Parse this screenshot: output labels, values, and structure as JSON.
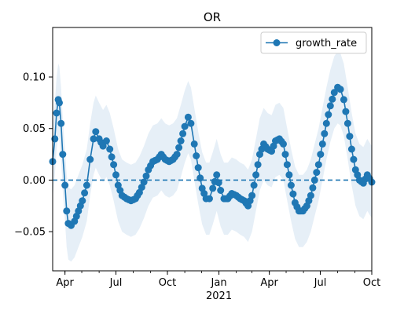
{
  "chart_data": {
    "type": "line",
    "title": "OR",
    "xlabel": "",
    "ylabel": "",
    "x_range": [
      "2020-03-10",
      "2021-10-01"
    ],
    "ylim": [
      -0.088,
      0.148
    ],
    "x_ticks": [
      {
        "date": "2020-04-01",
        "label": "Apr"
      },
      {
        "date": "2020-07-01",
        "label": "Jul"
      },
      {
        "date": "2020-10-01",
        "label": "Oct"
      },
      {
        "date": "2021-01-01",
        "label": "Jan"
      },
      {
        "date": "2021-04-01",
        "label": "Apr"
      },
      {
        "date": "2021-07-01",
        "label": "Jul"
      },
      {
        "date": "2021-10-01",
        "label": "Oct"
      }
    ],
    "x_secondary_label": {
      "date": "2021-01-01",
      "label": "2021"
    },
    "y_ticks": [
      {
        "value": 0.1,
        "label": "0.10"
      },
      {
        "value": 0.05,
        "label": "0.05"
      },
      {
        "value": 0.0,
        "label": "0.00"
      },
      {
        "value": -0.05,
        "label": "−0.05"
      }
    ],
    "reference_line": {
      "y": 0.0,
      "style": "dashed"
    },
    "legend": {
      "position": "top-right",
      "entries": [
        "growth_rate"
      ]
    },
    "grid": false,
    "colors": {
      "series": "#1f77b4",
      "band": "#dbe8f4"
    },
    "series": [
      {
        "name": "growth_rate",
        "marker": "circle",
        "band_halfwidth": 0.035,
        "points": [
          [
            "2020-03-10",
            0.018
          ],
          [
            "2020-03-14",
            0.04
          ],
          [
            "2020-03-17",
            0.065
          ],
          [
            "2020-03-20",
            0.078
          ],
          [
            "2020-03-22",
            0.075
          ],
          [
            "2020-03-25",
            0.055
          ],
          [
            "2020-03-28",
            0.025
          ],
          [
            "2020-04-01",
            -0.005
          ],
          [
            "2020-04-04",
            -0.03
          ],
          [
            "2020-04-07",
            -0.042
          ],
          [
            "2020-04-12",
            -0.044
          ],
          [
            "2020-04-18",
            -0.04
          ],
          [
            "2020-04-25",
            -0.03
          ],
          [
            "2020-05-02",
            -0.02
          ],
          [
            "2020-05-10",
            -0.005
          ],
          [
            "2020-05-16",
            0.02
          ],
          [
            "2020-05-22",
            0.04
          ],
          [
            "2020-05-26",
            0.047
          ],
          [
            "2020-06-01",
            0.04
          ],
          [
            "2020-06-08",
            0.033
          ],
          [
            "2020-06-14",
            0.038
          ],
          [
            "2020-06-20",
            0.03
          ],
          [
            "2020-06-27",
            0.015
          ],
          [
            "2020-07-05",
            -0.005
          ],
          [
            "2020-07-12",
            -0.015
          ],
          [
            "2020-07-20",
            -0.018
          ],
          [
            "2020-07-28",
            -0.02
          ],
          [
            "2020-08-05",
            -0.018
          ],
          [
            "2020-08-12",
            -0.012
          ],
          [
            "2020-08-20",
            -0.002
          ],
          [
            "2020-08-28",
            0.01
          ],
          [
            "2020-09-05",
            0.018
          ],
          [
            "2020-09-13",
            0.02
          ],
          [
            "2020-09-20",
            0.025
          ],
          [
            "2020-09-27",
            0.02
          ],
          [
            "2020-10-04",
            0.018
          ],
          [
            "2020-10-11",
            0.02
          ],
          [
            "2020-10-18",
            0.025
          ],
          [
            "2020-10-25",
            0.038
          ],
          [
            "2020-11-01",
            0.052
          ],
          [
            "2020-11-07",
            0.061
          ],
          [
            "2020-11-12",
            0.055
          ],
          [
            "2020-11-18",
            0.035
          ],
          [
            "2020-11-25",
            0.012
          ],
          [
            "2020-12-02",
            -0.008
          ],
          [
            "2020-12-09",
            -0.018
          ],
          [
            "2020-12-15",
            -0.018
          ],
          [
            "2020-12-21",
            -0.008
          ],
          [
            "2020-12-28",
            0.005
          ],
          [
            "2021-01-04",
            -0.01
          ],
          [
            "2021-01-10",
            -0.018
          ],
          [
            "2021-01-17",
            -0.018
          ],
          [
            "2021-01-24",
            -0.013
          ],
          [
            "2021-02-01",
            -0.015
          ],
          [
            "2021-02-08",
            -0.018
          ],
          [
            "2021-02-15",
            -0.02
          ],
          [
            "2021-02-22",
            -0.025
          ],
          [
            "2021-03-01",
            -0.015
          ],
          [
            "2021-03-08",
            0.005
          ],
          [
            "2021-03-15",
            0.025
          ],
          [
            "2021-03-22",
            0.035
          ],
          [
            "2021-03-29",
            0.03
          ],
          [
            "2021-04-05",
            0.028
          ],
          [
            "2021-04-12",
            0.038
          ],
          [
            "2021-04-19",
            0.04
          ],
          [
            "2021-04-26",
            0.035
          ],
          [
            "2021-05-03",
            0.015
          ],
          [
            "2021-05-10",
            -0.005
          ],
          [
            "2021-05-17",
            -0.022
          ],
          [
            "2021-05-24",
            -0.03
          ],
          [
            "2021-05-31",
            -0.03
          ],
          [
            "2021-06-07",
            -0.025
          ],
          [
            "2021-06-14",
            -0.015
          ],
          [
            "2021-06-21",
            0.0
          ],
          [
            "2021-06-28",
            0.015
          ],
          [
            "2021-07-05",
            0.035
          ],
          [
            "2021-07-12",
            0.055
          ],
          [
            "2021-07-19",
            0.072
          ],
          [
            "2021-07-26",
            0.085
          ],
          [
            "2021-08-01",
            0.09
          ],
          [
            "2021-08-06",
            0.088
          ],
          [
            "2021-08-12",
            0.078
          ],
          [
            "2021-08-19",
            0.055
          ],
          [
            "2021-08-26",
            0.03
          ],
          [
            "2021-09-02",
            0.01
          ],
          [
            "2021-09-09",
            0.0
          ],
          [
            "2021-09-16",
            -0.003
          ],
          [
            "2021-09-23",
            0.005
          ],
          [
            "2021-10-01",
            -0.002
          ]
        ]
      }
    ]
  }
}
